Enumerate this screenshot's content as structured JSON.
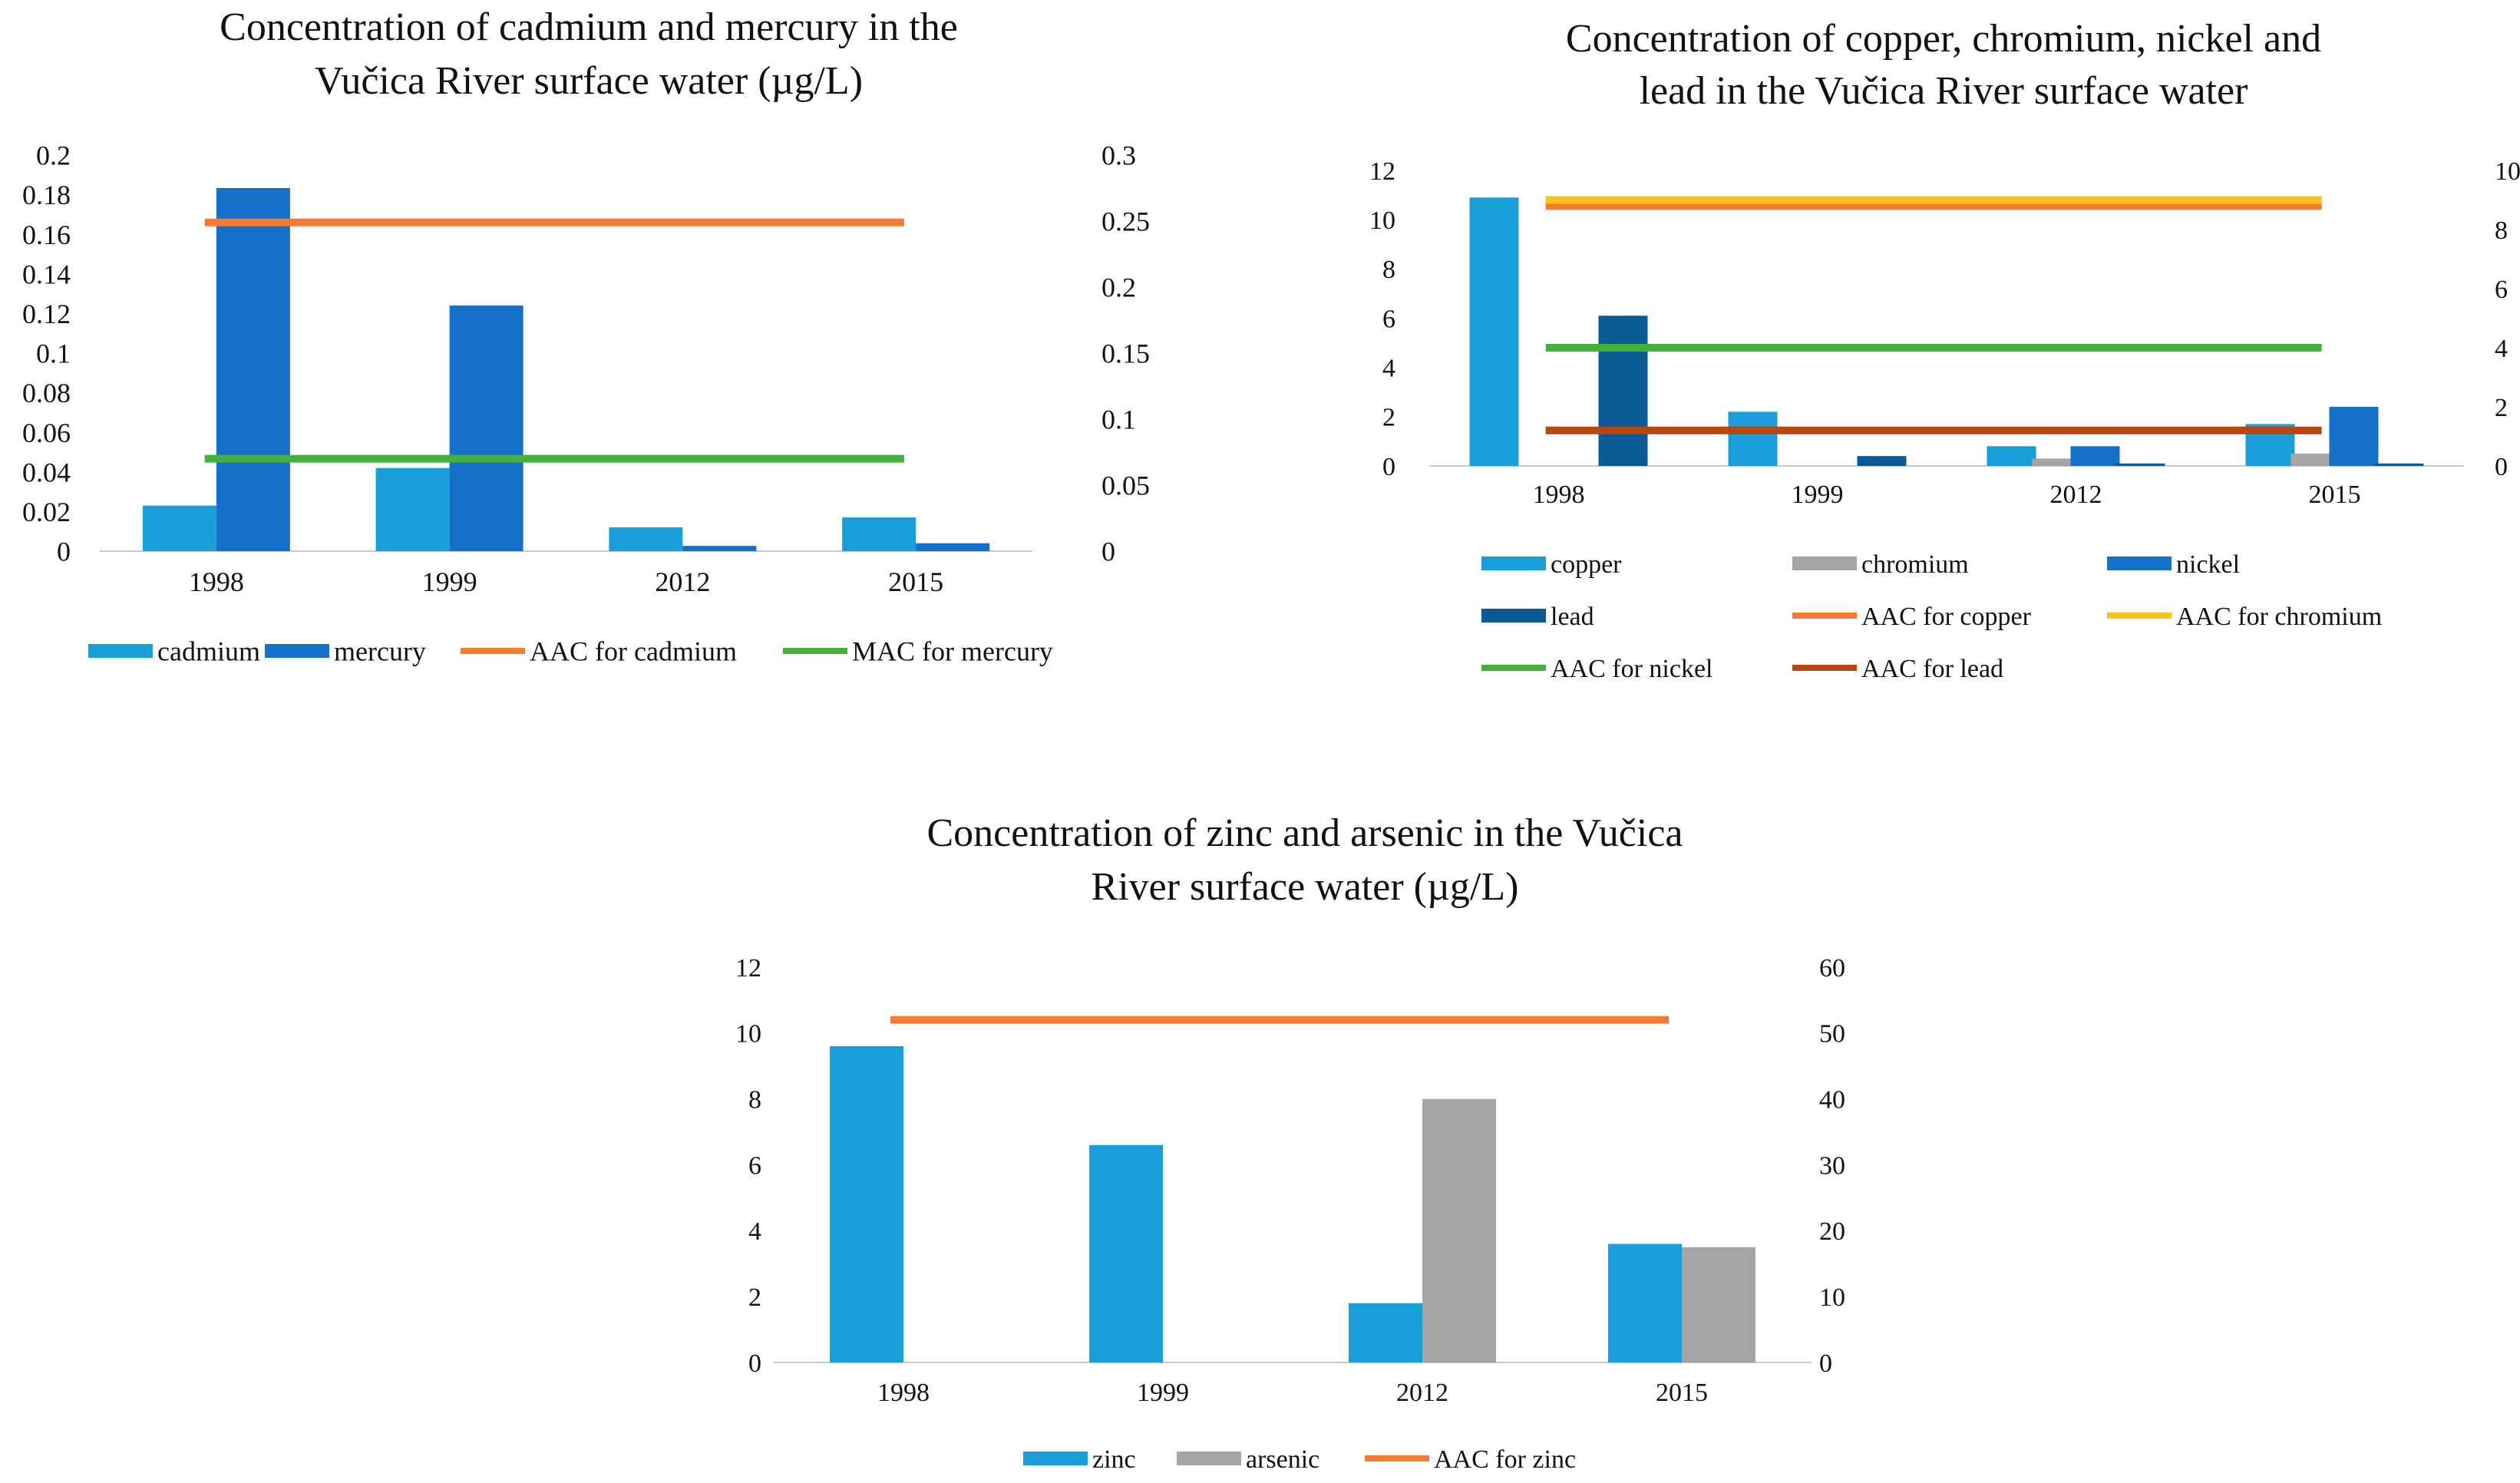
{
  "chart_data": [
    {
      "id": "c1",
      "type": "bar",
      "title_lines": [
        "Concentration of cadmium and mercury in the",
        "Vučica River surface water (µg/L)"
      ],
      "categories": [
        "1998",
        "1999",
        "2012",
        "2015"
      ],
      "y_left": {
        "min": 0,
        "max": 0.2,
        "ticks": [
          "0",
          "0.02",
          "0.04",
          "0.06",
          "0.08",
          "0.1",
          "0.12",
          "0.14",
          "0.16",
          "0.18",
          "0.2"
        ]
      },
      "y_right": {
        "min": 0,
        "max": 0.3,
        "ticks": [
          "0",
          "0.05",
          "0.1",
          "0.15",
          "0.2",
          "0.25",
          "0.3"
        ]
      },
      "series": [
        {
          "name": "cadmium",
          "kind": "bar",
          "axis": "left",
          "color": "#1a9ed9",
          "values": [
            0.023,
            0.042,
            0.012,
            0.017
          ]
        },
        {
          "name": "mercury",
          "kind": "bar",
          "axis": "right",
          "color": "#1570c9",
          "values": [
            0.275,
            0.186,
            0.004,
            0.006
          ]
        },
        {
          "name": "AAC for cadmium",
          "kind": "line",
          "axis": "left",
          "color": "#f47b30",
          "values": [
            0.166,
            0.166,
            0.166,
            0.166
          ]
        },
        {
          "name": "MAC for mercury",
          "kind": "line",
          "axis": "right",
          "color": "#44b13a",
          "values": [
            0.07,
            0.07,
            0.07,
            0.07
          ]
        }
      ],
      "legend_rows": [
        [
          "cadmium",
          "mercury",
          "AAC for cadmium",
          "MAC for mercury"
        ]
      ]
    },
    {
      "id": "c2",
      "type": "bar",
      "title_lines": [
        "Concentration of copper, chromium, nickel and",
        "lead in the Vučica River surface water"
      ],
      "categories": [
        "1998",
        "1999",
        "2012",
        "2015"
      ],
      "y_left": {
        "min": 0,
        "max": 12,
        "ticks": [
          "0",
          "2",
          "4",
          "6",
          "8",
          "10",
          "12"
        ]
      },
      "y_right": {
        "min": 0,
        "max": 10,
        "ticks": [
          "0",
          "2",
          "4",
          "6",
          "8",
          "10"
        ]
      },
      "series": [
        {
          "name": "copper",
          "kind": "bar",
          "axis": "left",
          "color": "#1a9ed9",
          "values": [
            10.9,
            2.2,
            0.8,
            1.7
          ]
        },
        {
          "name": "chromium",
          "kind": "bar",
          "axis": "left",
          "color": "#a5a5a5",
          "values": [
            0,
            0,
            0.3,
            0.5
          ]
        },
        {
          "name": "nickel",
          "kind": "bar",
          "axis": "left",
          "color": "#1570c9",
          "values": [
            0,
            0,
            0.8,
            2.4
          ]
        },
        {
          "name": "lead",
          "kind": "bar",
          "axis": "left",
          "color": "#0b5a96",
          "values": [
            6.1,
            0.4,
            0.1,
            0.1
          ]
        },
        {
          "name": "AAC for copper",
          "kind": "line",
          "axis": "right",
          "color": "#f47b30",
          "values": [
            8.8,
            8.8,
            8.8,
            8.8
          ]
        },
        {
          "name": "AAC for chromium",
          "kind": "line",
          "axis": "right",
          "color": "#f8c21a",
          "values": [
            9.0,
            9.0,
            9.0,
            9.0
          ]
        },
        {
          "name": "AAC for nickel",
          "kind": "line",
          "axis": "right",
          "color": "#44b13a",
          "values": [
            4.0,
            4.0,
            4.0,
            4.0
          ]
        },
        {
          "name": "AAC for lead",
          "kind": "line",
          "axis": "right",
          "color": "#b8470f",
          "values": [
            1.2,
            1.2,
            1.2,
            1.2
          ]
        }
      ],
      "legend_rows": [
        [
          "copper",
          "chromium",
          "nickel"
        ],
        [
          "lead",
          "AAC for copper",
          "AAC for chromium"
        ],
        [
          "AAC for nickel",
          "AAC for lead"
        ]
      ]
    },
    {
      "id": "c3",
      "type": "bar",
      "title_lines": [
        "Concentration of zinc and arsenic in the Vučica",
        "River surface water (µg/L)"
      ],
      "categories": [
        "1998",
        "1999",
        "2012",
        "2015"
      ],
      "y_left": {
        "min": 0,
        "max": 12,
        "ticks": [
          "0",
          "2",
          "4",
          "6",
          "8",
          "10",
          "12"
        ]
      },
      "y_right": {
        "min": 0,
        "max": 60,
        "ticks": [
          "0",
          "10",
          "20",
          "30",
          "40",
          "50",
          "60"
        ]
      },
      "series": [
        {
          "name": "zinc",
          "kind": "bar",
          "axis": "left",
          "color": "#1a9ed9",
          "values": [
            9.6,
            6.6,
            1.8,
            3.6
          ]
        },
        {
          "name": "arsenic",
          "kind": "bar",
          "axis": "left",
          "color": "#a5a5a5",
          "values": [
            0,
            0,
            8.0,
            3.5
          ]
        },
        {
          "name": "AAC for zinc",
          "kind": "line",
          "axis": "right",
          "color": "#f47b30",
          "values": [
            52,
            52,
            52,
            52
          ]
        }
      ],
      "legend_rows": [
        [
          "zinc",
          "arsenic",
          "AAC for zinc"
        ]
      ]
    }
  ]
}
